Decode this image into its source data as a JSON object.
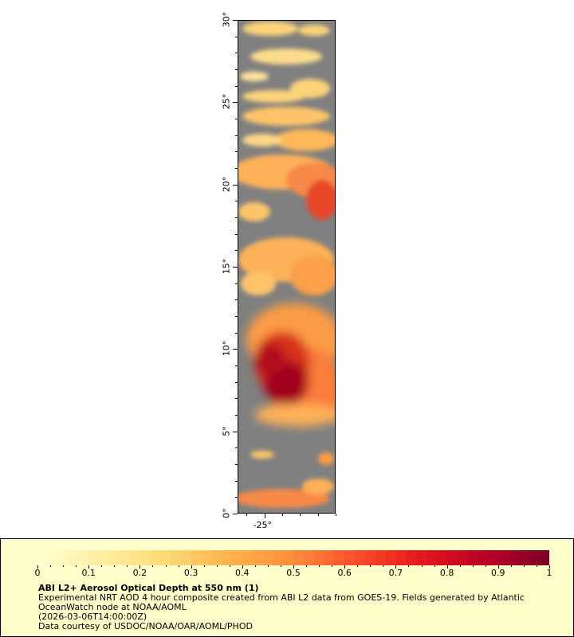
{
  "map": {
    "lat_labels": [
      {
        "value": 30,
        "text": "30°"
      },
      {
        "value": 25,
        "text": "25°"
      },
      {
        "value": 20,
        "text": "20°"
      },
      {
        "value": 15,
        "text": "15°"
      },
      {
        "value": 10,
        "text": "10°"
      },
      {
        "value": 5,
        "text": "5°"
      },
      {
        "value": 0,
        "text": "0°"
      }
    ],
    "lon_labels": [
      {
        "value": -25,
        "text": "-25°"
      }
    ],
    "lat_range": [
      0,
      30
    ],
    "lon_range": [
      -26.5,
      -21
    ],
    "no_data_color": "#808080"
  },
  "legend": {
    "ticks": [
      "0",
      "0.1",
      "0.2",
      "0.3",
      "0.4",
      "0.5",
      "0.6",
      "0.7",
      "0.8",
      "0.9",
      "1"
    ],
    "range": [
      0,
      1
    ],
    "colors": [
      "#ffffcc",
      "#ffeda0",
      "#fed976",
      "#feb24c",
      "#fd8d3c",
      "#fc4e2a",
      "#e31a1c",
      "#bd0026",
      "#800026"
    ],
    "title": "ABI L2+ Aerosol Optical Depth at 550 nm (1)",
    "line1": "Experimental NRT AOD 4 hour composite created from ABI L2 data from GOES-19. Fields generated by Atlantic",
    "line2": "OceanWatch node at NOAA/AOML",
    "line3": "(2026-03-06T14:00:00Z)",
    "line4": "Data courtesy of USDOC/NOAA/OAR/AOML/PHOD"
  }
}
